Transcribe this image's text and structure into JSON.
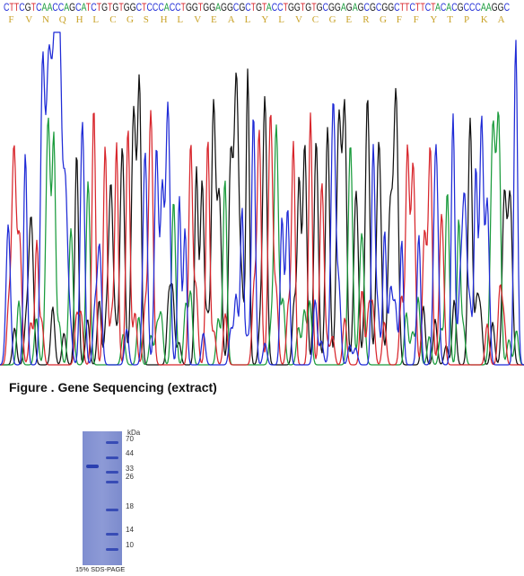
{
  "sequencing": {
    "dna": "CTTCGTCAACCAGCATCTGTGTGGCTCCCACCTGGTGGAGGCGCTGTACCTGGTGTGCGGAGAGCGCGGCTTCTTCTACACGCCCAAGGC",
    "amino_acids": [
      "F",
      "V",
      "N",
      "Q",
      "H",
      "L",
      "C",
      "G",
      "S",
      "H",
      "L",
      "V",
      "E",
      "A",
      "L",
      "Y",
      "L",
      "V",
      "C",
      "G",
      "E",
      "R",
      "G",
      "F",
      "F",
      "Y",
      "T",
      "P",
      "K",
      "A"
    ],
    "base_colors": {
      "A": "#1a9b3c",
      "C": "#1f2bd6",
      "G": "#111111",
      "T": "#d8262c"
    },
    "aa_color": "#c9a227"
  },
  "caption": "Figure . Gene Sequencing (extract)",
  "gel": {
    "unit": "kDa",
    "markers": [
      "70",
      "44",
      "33",
      "26",
      "18",
      "14",
      "10"
    ],
    "caption": "15% SDS-PAGE",
    "lane_color": "#2a3fb0",
    "background_color": "#8593d3"
  }
}
